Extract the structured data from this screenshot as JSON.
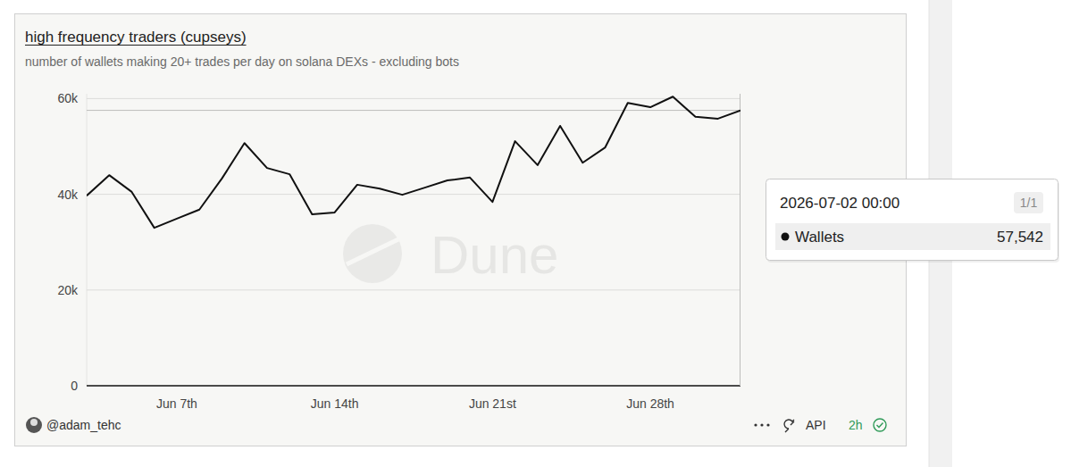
{
  "chart_data": {
    "type": "line",
    "title": "high frequency traders (cupseys)",
    "subtitle": "number of wallets making 20+ trades per day on solana DEXs - excluding bots",
    "categories": [
      null,
      null,
      null,
      null,
      "Jun 7th",
      null,
      null,
      null,
      null,
      null,
      null,
      "Jun 14th",
      null,
      null,
      null,
      null,
      null,
      null,
      "Jun 21st",
      null,
      null,
      null,
      null,
      null,
      null,
      "Jun 28th",
      null,
      null,
      null,
      null
    ],
    "series": [
      {
        "name": "Wallets",
        "color": "#111111",
        "values": [
          39700,
          44000,
          40500,
          33000,
          34900,
          36800,
          43300,
          50700,
          45500,
          44200,
          35800,
          36200,
          42000,
          41200,
          39900,
          41400,
          42900,
          43500,
          38400,
          51100,
          46100,
          54300,
          46600,
          49800,
          59100,
          58200,
          60400,
          56200,
          55800,
          57542
        ]
      }
    ],
    "ylim": [
      0,
      61000
    ],
    "yticks": [
      0,
      {
        "value": 20000,
        "label": "20k"
      },
      {
        "value": 40000,
        "label": "40k"
      },
      {
        "value": 60000,
        "label": "60k"
      }
    ],
    "grid": true,
    "watermark": "Dune",
    "tooltip": {
      "title": "2026-07-02 00:00",
      "counter": "1/1",
      "series": "Wallets",
      "value": "57,542"
    },
    "footer": {
      "author": "@adam_tehc",
      "api": "API",
      "age": "2h"
    }
  }
}
